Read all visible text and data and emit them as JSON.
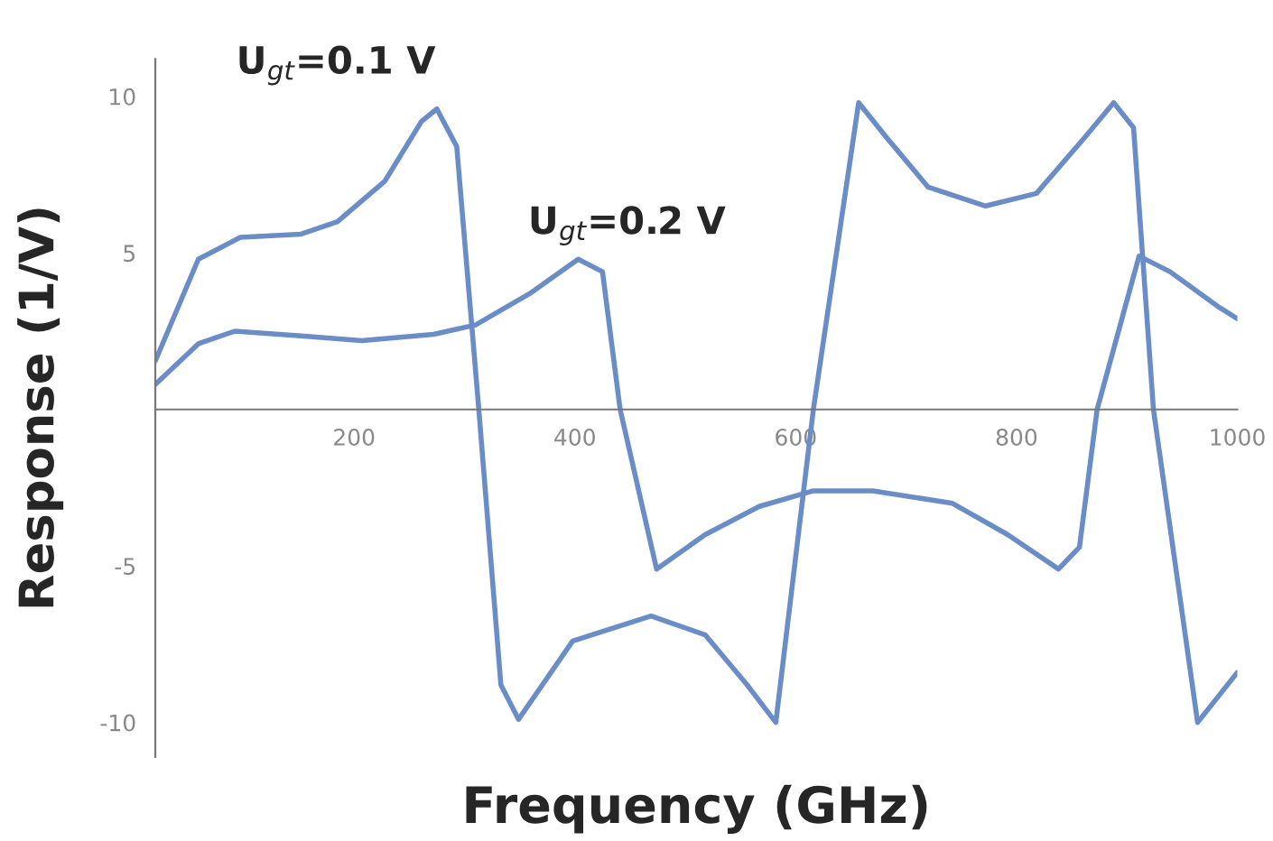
{
  "chart_data": {
    "type": "line",
    "xlabel": "Frequency (GHz)",
    "ylabel": "Response (1/V)",
    "xlim": [
      20,
      1000
    ],
    "ylim": [
      -11.1,
      11.2
    ],
    "xticks": [
      200,
      400,
      600,
      800,
      1000
    ],
    "yticks": [
      -10,
      -5,
      5,
      10
    ],
    "grid": false,
    "legend": false,
    "marker": "none",
    "line_style": "solid",
    "series": [
      {
        "name": "U$_{gt}$=0.1 V",
        "color": "#6a8cc7",
        "x": [
          20,
          59,
          97,
          152,
          185,
          228,
          261,
          275,
          293,
          313,
          333,
          349,
          398,
          469,
          518,
          556,
          582,
          616,
          657,
          682,
          720,
          772,
          818,
          862,
          888,
          906,
          924,
          964,
          1000
        ],
        "values": [
          1.55,
          4.8,
          5.5,
          5.6,
          6.0,
          7.3,
          9.2,
          9.6,
          8.4,
          0,
          -8.8,
          -9.9,
          -7.4,
          -6.6,
          -7.2,
          -8.8,
          -10,
          0,
          9.8,
          8.7,
          7.1,
          6.5,
          6.9,
          8.7,
          9.8,
          9.0,
          0,
          -10,
          -8.4
        ]
      },
      {
        "name": "U$_{gt}$=0.2 V",
        "color": "#6a8cc7",
        "x": [
          20,
          59,
          92,
          152,
          207,
          272,
          310,
          359,
          403,
          425,
          441,
          474,
          518,
          567,
          616,
          670,
          742,
          792,
          838,
          857,
          873,
          911,
          939,
          982,
          1000
        ],
        "values": [
          0.8,
          2.1,
          2.5,
          2.35,
          2.2,
          2.4,
          2.7,
          3.7,
          4.8,
          4.4,
          0,
          -5.1,
          -4.0,
          -3.1,
          -2.6,
          -2.6,
          -3.0,
          -4.0,
          -5.1,
          -4.4,
          0,
          4.9,
          4.4,
          3.3,
          2.9
        ]
      }
    ]
  }
}
